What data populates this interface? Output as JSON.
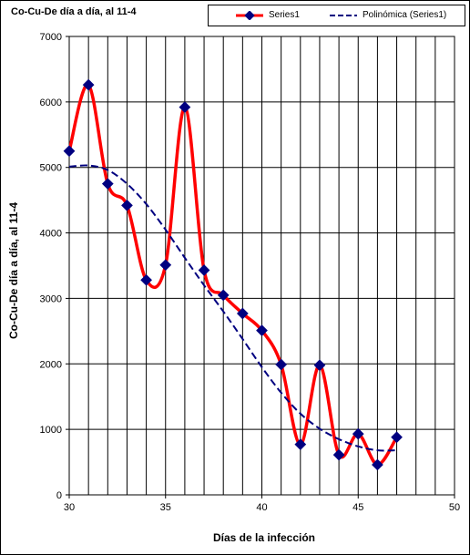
{
  "chart_data": {
    "type": "line",
    "title": "Co-Cu-De día a día, al 11-4",
    "xlabel": "Días de la infección",
    "ylabel": "Co-Cu-De día a día, al 11-4",
    "xlim": [
      30,
      50
    ],
    "ylim": [
      0,
      7000
    ],
    "x_ticks": [
      "30",
      "35",
      "40",
      "45",
      "50"
    ],
    "y_ticks": [
      "0",
      "1000",
      "2000",
      "3000",
      "4000",
      "5000",
      "6000",
      "7000"
    ],
    "grid": "vertical lines every 1 unit, horizontal lines every 1000",
    "legend_position": "top-right",
    "series": [
      {
        "name": "Series1",
        "color": "#ff0000",
        "marker_color": "#000080",
        "x": [
          30,
          31,
          32,
          33,
          34,
          35,
          36,
          37,
          38,
          39,
          40,
          41,
          42,
          43,
          44,
          45,
          46,
          47
        ],
        "values": [
          5250,
          6260,
          4750,
          4420,
          3280,
          3510,
          5920,
          3430,
          3050,
          2770,
          2510,
          1990,
          770,
          1980,
          610,
          930,
          460,
          880
        ]
      },
      {
        "name": "Polinómica (Series1)",
        "color": "#000080",
        "style": "dashed",
        "x": [
          30,
          31,
          32,
          33,
          34,
          35,
          36,
          37,
          38,
          39,
          40,
          41,
          42,
          43,
          44,
          45,
          46,
          47
        ],
        "values": [
          5010,
          5030,
          4960,
          4750,
          4440,
          4050,
          3620,
          3200,
          2800,
          2380,
          1950,
          1560,
          1240,
          1010,
          850,
          740,
          680,
          680
        ]
      }
    ]
  }
}
